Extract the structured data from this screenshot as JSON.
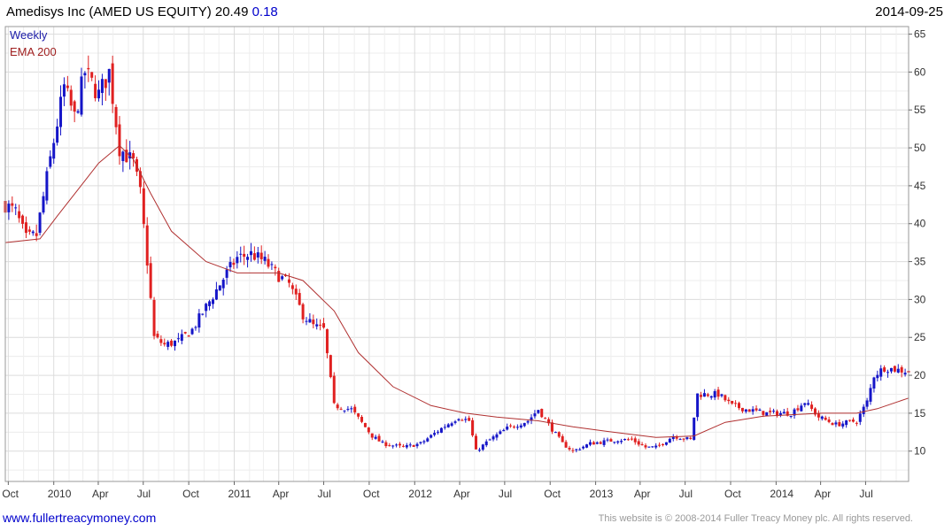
{
  "header": {
    "title": "Amedisys Inc (AMED US EQUITY) 20.49",
    "change": "0.18",
    "date": "2014-09-25"
  },
  "footer": {
    "website": "www.fullertreacymoney.com",
    "copyright": "This website is © 2008-2014 Fuller Treacy Money plc. All rights reserved."
  },
  "colors": {
    "up": "#1515c8",
    "down": "#e02020",
    "ema": "#b03030",
    "grid": "#dcdcdc",
    "frame": "#9a9a9a"
  },
  "chart_data": {
    "type": "candlestick",
    "legend": [
      {
        "label": "Weekly",
        "color": "#2020aa"
      },
      {
        "label": "EMA 200",
        "color": "#a02020"
      }
    ],
    "legend_position": "top-left",
    "grid": true,
    "ylim": [
      6,
      66
    ],
    "yticks": [
      10,
      15,
      20,
      25,
      30,
      35,
      40,
      45,
      50,
      55,
      60,
      65
    ],
    "xlim": [
      "2009-09-25",
      "2014-09-26"
    ],
    "xticks": [
      {
        "label": "Oct",
        "date": "2009-10-01"
      },
      {
        "label": "2010",
        "date": "2010-01-01"
      },
      {
        "label": "Apr",
        "date": "2010-04-01"
      },
      {
        "label": "Jul",
        "date": "2010-07-01"
      },
      {
        "label": "Oct",
        "date": "2010-10-01"
      },
      {
        "label": "2011",
        "date": "2011-01-01"
      },
      {
        "label": "Apr",
        "date": "2011-04-01"
      },
      {
        "label": "Jul",
        "date": "2011-07-01"
      },
      {
        "label": "Oct",
        "date": "2011-10-01"
      },
      {
        "label": "2012",
        "date": "2012-01-01"
      },
      {
        "label": "Apr",
        "date": "2012-04-01"
      },
      {
        "label": "Jul",
        "date": "2012-07-01"
      },
      {
        "label": "Oct",
        "date": "2012-10-01"
      },
      {
        "label": "2013",
        "date": "2013-01-01"
      },
      {
        "label": "Apr",
        "date": "2013-04-01"
      },
      {
        "label": "Jul",
        "date": "2013-07-01"
      },
      {
        "label": "Oct",
        "date": "2013-10-01"
      },
      {
        "label": "2014",
        "date": "2014-01-01"
      },
      {
        "label": "Apr",
        "date": "2014-04-01"
      },
      {
        "label": "Jul",
        "date": "2014-07-01"
      }
    ],
    "close_anchors": [
      [
        "2009-09-25",
        42.5
      ],
      [
        "2009-10-16",
        41.5
      ],
      [
        "2009-11-06",
        38.0
      ],
      [
        "2009-11-27",
        38.5
      ],
      [
        "2009-12-25",
        48.5
      ],
      [
        "2010-01-22",
        58.0
      ],
      [
        "2010-02-12",
        54.0
      ],
      [
        "2010-03-05",
        60.0
      ],
      [
        "2010-04-02",
        57.0
      ],
      [
        "2010-04-23",
        60.0
      ],
      [
        "2010-05-14",
        50.0
      ],
      [
        "2010-06-11",
        48.0
      ],
      [
        "2010-06-25",
        44.0
      ],
      [
        "2010-07-09",
        35.0
      ],
      [
        "2010-07-23",
        25.0
      ],
      [
        "2010-08-13",
        24.0
      ],
      [
        "2010-09-10",
        24.5
      ],
      [
        "2010-10-08",
        26.0
      ],
      [
        "2010-11-05",
        29.0
      ],
      [
        "2010-12-17",
        33.5
      ],
      [
        "2011-01-07",
        35.5
      ],
      [
        "2011-02-04",
        36.0
      ],
      [
        "2011-03-04",
        35.0
      ],
      [
        "2011-03-25",
        33.5
      ],
      [
        "2011-04-22",
        32.0
      ],
      [
        "2011-05-20",
        28.0
      ],
      [
        "2011-06-10",
        26.5
      ],
      [
        "2011-07-01",
        26.0
      ],
      [
        "2011-07-22",
        16.0
      ],
      [
        "2011-08-26",
        15.5
      ],
      [
        "2011-10-07",
        12.0
      ],
      [
        "2011-10-28",
        11.0
      ],
      [
        "2011-12-09",
        10.5
      ],
      [
        "2012-01-13",
        11.0
      ],
      [
        "2012-02-24",
        13.0
      ],
      [
        "2012-03-30",
        14.5
      ],
      [
        "2012-04-20",
        14.0
      ],
      [
        "2012-05-04",
        10.0
      ],
      [
        "2012-06-01",
        11.5
      ],
      [
        "2012-07-06",
        13.0
      ],
      [
        "2012-08-17",
        14.0
      ],
      [
        "2012-09-07",
        15.5
      ],
      [
        "2012-09-28",
        13.5
      ],
      [
        "2012-10-26",
        11.0
      ],
      [
        "2012-11-16",
        10.0
      ],
      [
        "2012-12-21",
        11.0
      ],
      [
        "2013-02-15",
        11.5
      ],
      [
        "2013-03-15",
        11.5
      ],
      [
        "2013-04-12",
        10.5
      ],
      [
        "2013-05-03",
        10.5
      ],
      [
        "2013-06-07",
        12.0
      ],
      [
        "2013-07-12",
        11.5
      ],
      [
        "2013-07-26",
        17.5
      ],
      [
        "2013-09-06",
        17.5
      ],
      [
        "2013-10-04",
        16.0
      ],
      [
        "2013-11-01",
        15.5
      ],
      [
        "2013-12-13",
        15.0
      ],
      [
        "2014-01-31",
        15.0
      ],
      [
        "2014-02-28",
        16.5
      ],
      [
        "2014-03-28",
        14.5
      ],
      [
        "2014-05-02",
        13.5
      ],
      [
        "2014-06-13",
        14.0
      ],
      [
        "2014-07-04",
        16.5
      ],
      [
        "2014-07-18",
        20.0
      ],
      [
        "2014-08-08",
        21.0
      ],
      [
        "2014-09-26",
        20.5
      ]
    ],
    "ema200_anchors": [
      [
        "2009-09-25",
        37.5
      ],
      [
        "2009-12-04",
        38.0
      ],
      [
        "2010-01-08",
        41.0
      ],
      [
        "2010-02-19",
        44.5
      ],
      [
        "2010-04-02",
        48.0
      ],
      [
        "2010-05-14",
        50.3
      ],
      [
        "2010-06-11",
        48.5
      ],
      [
        "2010-07-16",
        44.0
      ],
      [
        "2010-08-27",
        39.0
      ],
      [
        "2010-11-05",
        35.0
      ],
      [
        "2011-01-07",
        33.5
      ],
      [
        "2011-04-01",
        33.5
      ],
      [
        "2011-05-20",
        32.5
      ],
      [
        "2011-07-22",
        28.5
      ],
      [
        "2011-09-09",
        23.0
      ],
      [
        "2011-11-18",
        18.5
      ],
      [
        "2012-02-03",
        16.0
      ],
      [
        "2012-04-13",
        15.0
      ],
      [
        "2012-06-15",
        14.5
      ],
      [
        "2012-09-07",
        14.0
      ],
      [
        "2012-11-16",
        13.2
      ],
      [
        "2013-01-25",
        12.6
      ],
      [
        "2013-05-03",
        11.8
      ],
      [
        "2013-07-19",
        12.0
      ],
      [
        "2013-09-20",
        13.8
      ],
      [
        "2013-12-06",
        14.6
      ],
      [
        "2014-04-04",
        15.0
      ],
      [
        "2014-06-13",
        15.0
      ],
      [
        "2014-07-25",
        15.6
      ],
      [
        "2014-09-26",
        17.0
      ]
    ]
  }
}
